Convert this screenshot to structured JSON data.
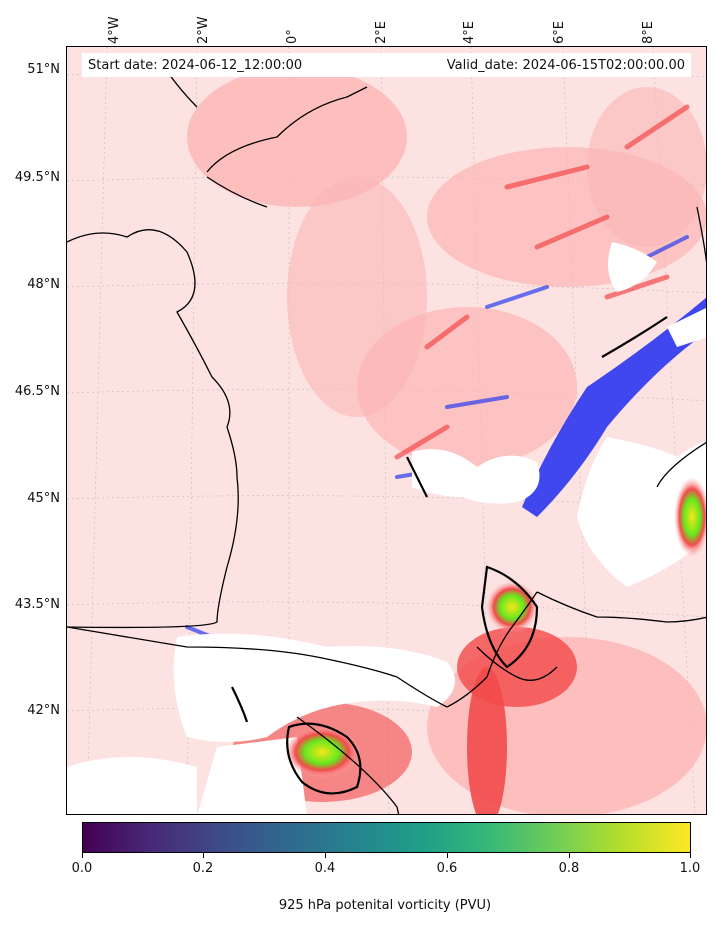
{
  "header": {
    "start_label": "Start date: 2024-06-12_12:00:00",
    "valid_label": "Valid_date: 2024-06-15T02:00:00.00"
  },
  "axes": {
    "longitudes": [
      "4°W",
      "2°W",
      "0°",
      "2°E",
      "4°E",
      "6°E",
      "8°E"
    ],
    "latitudes": [
      "51°N",
      "49.5°N",
      "48°N",
      "46.5°N",
      "45°N",
      "43.5°N",
      "42°N"
    ]
  },
  "colorbar": {
    "title": "925 hPa potenital vorticity (PVU)",
    "ticks": [
      "0.0",
      "0.2",
      "0.4",
      "0.6",
      "0.8",
      "1.0"
    ],
    "range": [
      0.0,
      1.0
    ],
    "colormap": "viridis"
  },
  "colors": {
    "background_field": "#fde2e2",
    "positive_light": "#fcb5b5",
    "positive_strong": "#f24a4a",
    "negative": "#1f2bf0",
    "high_green": "#66e81e",
    "high_yellow": "#f7e61a",
    "coastline": "#000000"
  }
}
